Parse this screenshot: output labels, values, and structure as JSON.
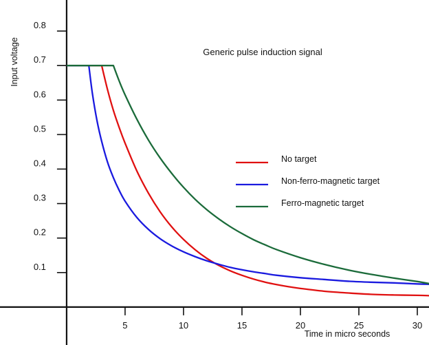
{
  "chart_data": {
    "type": "line",
    "title": "Generic pulse induction signal",
    "xlabel": "Time in micro seconds",
    "ylabel": "Input voltage",
    "xlim": [
      -5.7,
      31
    ],
    "ylim": [
      -0.11,
      0.89
    ],
    "xticks": [
      5,
      10,
      15,
      20,
      25,
      30
    ],
    "yticks": [
      0.1,
      0.2,
      0.3,
      0.4,
      0.5,
      0.6,
      0.7,
      0.8
    ],
    "grid": false,
    "legend_position": "right",
    "series": [
      {
        "name": "No target",
        "color": "#e01010",
        "x": [
          0,
          3.0,
          3.5,
          4,
          4.5,
          5,
          6,
          7,
          8,
          9,
          10,
          11,
          12,
          13,
          14,
          15,
          16,
          17,
          18,
          19,
          20,
          22,
          24,
          26,
          28,
          30,
          31
        ],
        "y": [
          0.7,
          0.7,
          0.63,
          0.57,
          0.52,
          0.475,
          0.395,
          0.33,
          0.276,
          0.232,
          0.196,
          0.166,
          0.141,
          0.121,
          0.105,
          0.092,
          0.081,
          0.072,
          0.065,
          0.059,
          0.054,
          0.046,
          0.041,
          0.037,
          0.035,
          0.034,
          0.033
        ]
      },
      {
        "name": "Non-ferro-magnetic target",
        "color": "#1a1adf",
        "x": [
          0,
          1.9,
          2.2,
          2.6,
          3,
          3.5,
          4,
          4.5,
          5,
          6,
          7,
          8,
          9,
          10,
          11,
          12,
          13,
          14,
          15,
          16,
          17,
          18,
          20,
          22,
          24,
          26,
          28,
          30,
          31
        ],
        "y": [
          0.7,
          0.7,
          0.62,
          0.54,
          0.48,
          0.42,
          0.375,
          0.338,
          0.307,
          0.26,
          0.225,
          0.198,
          0.177,
          0.16,
          0.146,
          0.134,
          0.124,
          0.115,
          0.108,
          0.102,
          0.097,
          0.092,
          0.085,
          0.08,
          0.075,
          0.072,
          0.07,
          0.067,
          0.066
        ]
      },
      {
        "name": "Ferro-magnetic target",
        "color": "#1b6b3a",
        "x": [
          0,
          4.0,
          4.5,
          5,
          6,
          7,
          8,
          9,
          10,
          11,
          12,
          13,
          14,
          15,
          16,
          17,
          18,
          20,
          22,
          24,
          26,
          28,
          30,
          31
        ],
        "y": [
          0.7,
          0.7,
          0.655,
          0.615,
          0.545,
          0.484,
          0.432,
          0.387,
          0.347,
          0.312,
          0.282,
          0.256,
          0.233,
          0.213,
          0.195,
          0.18,
          0.166,
          0.143,
          0.124,
          0.108,
          0.095,
          0.084,
          0.074,
          0.068
        ]
      }
    ]
  }
}
